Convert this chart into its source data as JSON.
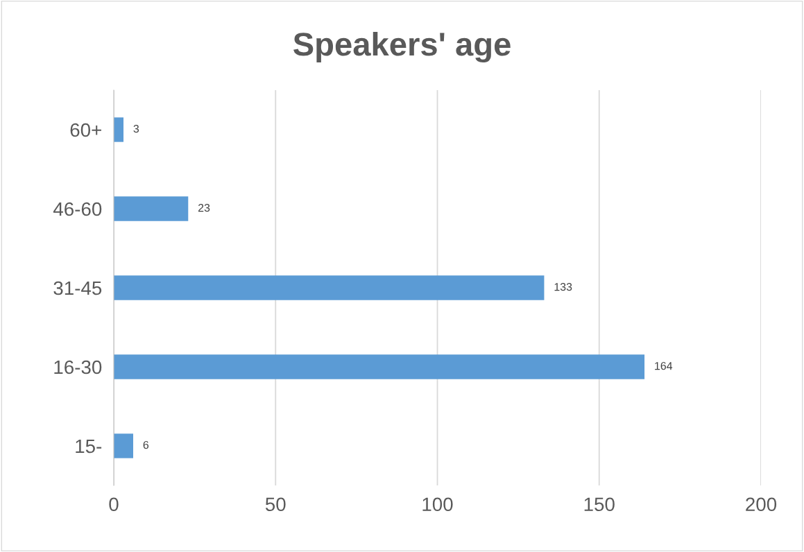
{
  "chart_data": {
    "type": "bar",
    "orientation": "horizontal",
    "title": "Speakers' age",
    "categories": [
      "60+",
      "46-60",
      "31-45",
      "16-30",
      "15-"
    ],
    "values": [
      3,
      23,
      133,
      164,
      6
    ],
    "color": "#5b9bd5",
    "xlim": [
      0,
      200
    ],
    "xticks": [
      0,
      50,
      100,
      150,
      200
    ],
    "grid": "x",
    "data_labels": true
  }
}
